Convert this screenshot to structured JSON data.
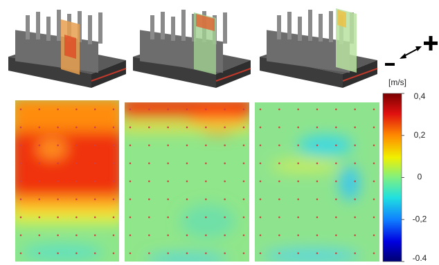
{
  "colorbar": {
    "unit": "[m/s]",
    "lim": [
      -0.4,
      0.4
    ],
    "ticks": [
      {
        "value": 0.4,
        "label": "0,4"
      },
      {
        "value": 0.2,
        "label": "0,2"
      },
      0,
      {
        "value": -0.2,
        "label": "-0,2"
      },
      -0.4
    ]
  }
}
